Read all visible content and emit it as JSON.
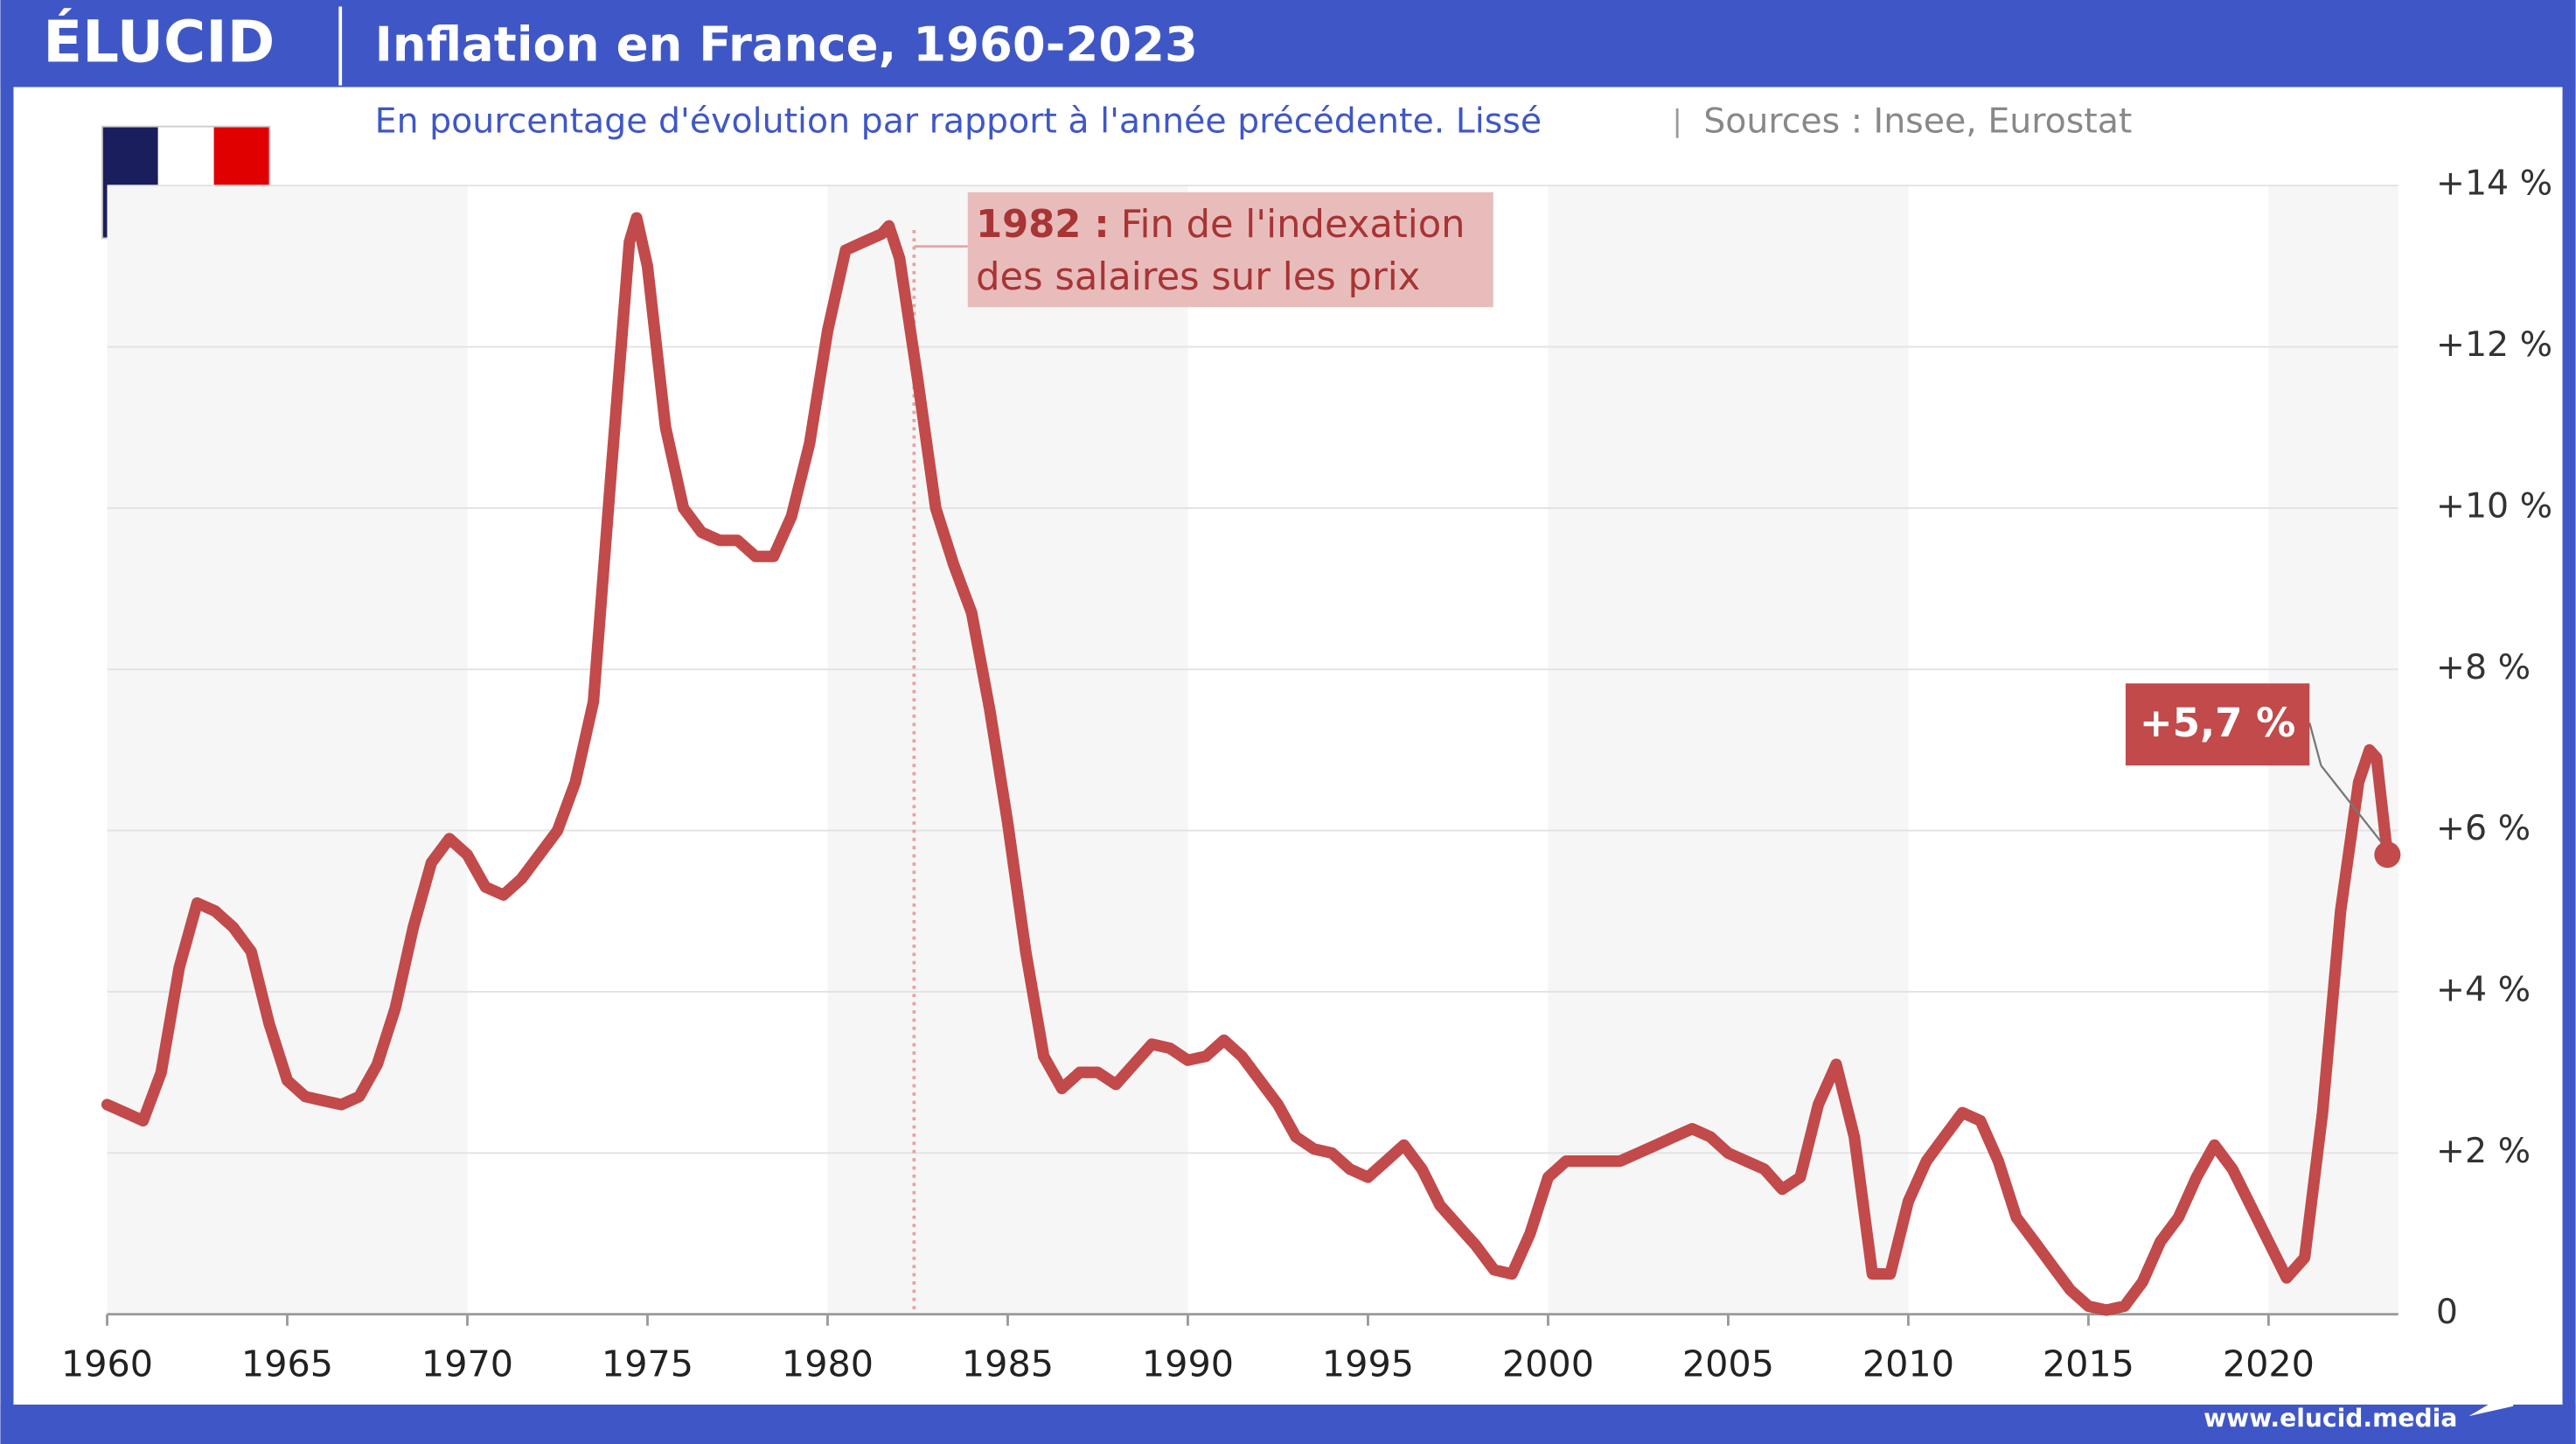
{
  "logo": "ÉLUCID",
  "footer": "www.elucid.media",
  "chart_data": {
    "type": "line",
    "title": "Inflation en France, 1960-2023",
    "subtitle": "En pourcentage d'évolution par rapport à l'année précédente. Lissé",
    "source": "Sources : Insee, Eurostat",
    "color": "#c24a4a",
    "x": [
      1960,
      1960.5,
      1961,
      1961.5,
      1962,
      1962.5,
      1963,
      1963.5,
      1964,
      1964.5,
      1965,
      1965.5,
      1966,
      1966.5,
      1967,
      1967.5,
      1968,
      1968.5,
      1969,
      1969.5,
      1970,
      1970.5,
      1971,
      1971.5,
      1972,
      1972.5,
      1973,
      1973.5,
      1974,
      1974.5,
      1974.7,
      1975,
      1975.5,
      1976,
      1976.5,
      1977,
      1977.5,
      1978,
      1978.5,
      1979,
      1979.5,
      1980,
      1980.5,
      1981,
      1981.5,
      1981.7,
      1982,
      1982.5,
      1983,
      1983.5,
      1984,
      1984.5,
      1985,
      1985.5,
      1986,
      1986.5,
      1987,
      1987.5,
      1988,
      1988.5,
      1989,
      1989.5,
      1990,
      1990.5,
      1991,
      1991.5,
      1992,
      1992.5,
      1993,
      1993.5,
      1994,
      1994.5,
      1995,
      1995.5,
      1996,
      1996.5,
      1997,
      1997.5,
      1998,
      1998.5,
      1999,
      1999.5,
      2000,
      2000.5,
      2001,
      2001.5,
      2002,
      2002.5,
      2003,
      2003.5,
      2004,
      2004.5,
      2005,
      2005.5,
      2006,
      2006.5,
      2007,
      2007.5,
      2008,
      2008.5,
      2009,
      2009.5,
      2010,
      2010.5,
      2011,
      2011.5,
      2012,
      2012.5,
      2013,
      2013.5,
      2014,
      2014.5,
      2015,
      2015.5,
      2016,
      2016.5,
      2017,
      2017.5,
      2018,
      2018.5,
      2019,
      2019.5,
      2020,
      2020.5,
      2021,
      2021.5,
      2022,
      2022.5,
      2022.8,
      2023,
      2023.3
    ],
    "values": [
      2.6,
      2.5,
      2.4,
      3.0,
      4.3,
      5.1,
      5.0,
      4.8,
      4.5,
      3.6,
      2.9,
      2.7,
      2.65,
      2.6,
      2.7,
      3.1,
      3.8,
      4.8,
      5.6,
      5.9,
      5.7,
      5.3,
      5.2,
      5.4,
      5.7,
      6.0,
      6.6,
      7.6,
      10.5,
      13.3,
      13.6,
      13.0,
      11.0,
      10.0,
      9.7,
      9.6,
      9.6,
      9.4,
      9.4,
      9.9,
      10.8,
      12.2,
      13.2,
      13.3,
      13.4,
      13.5,
      13.1,
      11.6,
      10.0,
      9.3,
      8.7,
      7.5,
      6.1,
      4.5,
      3.2,
      2.8,
      3.0,
      3.0,
      2.85,
      3.1,
      3.35,
      3.3,
      3.15,
      3.2,
      3.4,
      3.2,
      2.9,
      2.6,
      2.2,
      2.05,
      2.0,
      1.8,
      1.7,
      1.9,
      2.1,
      1.8,
      1.35,
      1.1,
      0.85,
      0.55,
      0.5,
      1.0,
      1.7,
      1.9,
      1.9,
      1.9,
      1.9,
      2.0,
      2.1,
      2.2,
      2.3,
      2.2,
      2.0,
      1.9,
      1.8,
      1.55,
      1.7,
      2.6,
      3.1,
      2.2,
      0.5,
      0.5,
      1.4,
      1.9,
      2.2,
      2.5,
      2.4,
      1.9,
      1.2,
      0.9,
      0.6,
      0.3,
      0.1,
      0.05,
      0.1,
      0.4,
      0.9,
      1.2,
      1.7,
      2.1,
      1.8,
      1.35,
      0.9,
      0.45,
      0.7,
      2.5,
      5.0,
      6.6,
      7.0,
      6.9,
      5.7
    ],
    "end_label": "+5,7 %",
    "xlim": [
      1960,
      2023.6
    ],
    "xticks": [
      1960,
      1965,
      1970,
      1975,
      1980,
      1985,
      1990,
      1995,
      2000,
      2005,
      2010,
      2015,
      2020
    ],
    "ylim": [
      0,
      14
    ],
    "yticks": [
      0,
      {
        "value": 2,
        "label": "+2 %"
      },
      {
        "value": 4,
        "label": "+4 %"
      },
      {
        "value": 6,
        "label": "+6 %"
      },
      {
        "value": 8,
        "label": "+8 %"
      },
      {
        "value": 10,
        "label": "+10 %"
      },
      {
        "value": 12,
        "label": "+12 %"
      },
      {
        "value": 14,
        "label": "+14 %"
      }
    ],
    "grid": true,
    "annotation": {
      "x": 1982.4,
      "label_bold": "1982 :",
      "lines": [
        "Fin de l'indexation",
        "des salaires sur les prix"
      ]
    }
  }
}
